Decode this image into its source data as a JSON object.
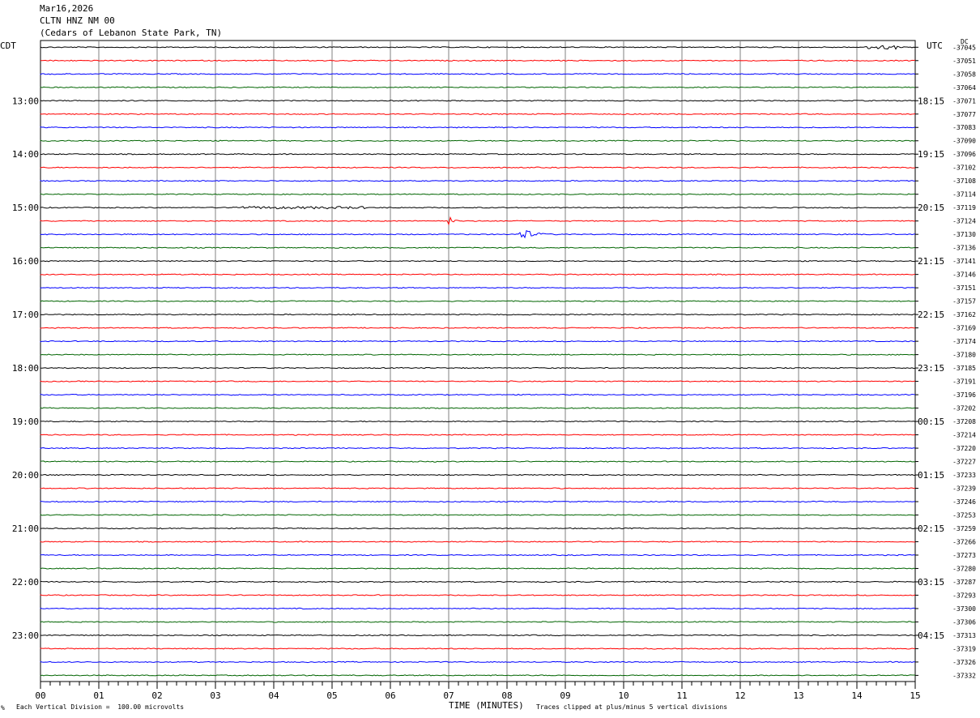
{
  "header": {
    "date": "Mar16,2026",
    "station": "CLTN HNZ NM 00",
    "location": "(Cedars of Lebanon State Park, TN)"
  },
  "left_zone": "CDT",
  "right_zone": "UTC",
  "dc_label": "DC",
  "footer": {
    "scale_note": "Each Vertical Division =  100.00 microvolts",
    "xlabel": "TIME (MINUTES)",
    "clip_note": "Traces clipped at plus/minus 5 vertical divisions",
    "corner_mark": "%"
  },
  "colors": {
    "cycle": [
      "#000000",
      "#ff0000",
      "#0000ff",
      "#006400"
    ],
    "grid": "#808080"
  },
  "chart_data": {
    "type": "line",
    "title": "",
    "xlabel": "TIME (MINUTES)",
    "xlim": [
      0,
      15
    ],
    "x_ticks": [
      "00",
      "01",
      "02",
      "03",
      "04",
      "05",
      "06",
      "07",
      "08",
      "09",
      "10",
      "11",
      "12",
      "13",
      "14",
      "15"
    ],
    "minutes_per_trace": 15,
    "trace_count": 48,
    "hour_labels_left": [
      "13:00",
      "14:00",
      "15:00",
      "16:00",
      "17:00",
      "18:00",
      "19:00",
      "20:00",
      "21:00",
      "22:00",
      "23:00"
    ],
    "hour_labels_right": [
      "18:15",
      "19:15",
      "20:15",
      "21:15",
      "22:15",
      "23:15",
      "00:15",
      "01:15",
      "02:15",
      "03:15",
      "04:15"
    ],
    "dc_offsets": [
      "-37045",
      "-37051",
      "-37058",
      "-37064",
      "-37071",
      "-37077",
      "-37083",
      "-37090",
      "-37096",
      "-37102",
      "-37108",
      "-37114",
      "-37119",
      "-37124",
      "-37130",
      "-37136",
      "-37141",
      "-37146",
      "-37151",
      "-37157",
      "-37162",
      "-37169",
      "-37174",
      "-37180",
      "-37185",
      "-37191",
      "-37196",
      "-37202",
      "-37208",
      "-37214",
      "-37220",
      "-37227",
      "-37233",
      "-37239",
      "-37246",
      "-37253",
      "-37259",
      "-37266",
      "-37273",
      "-37280",
      "-37287",
      "-37293",
      "-37300",
      "-37306",
      "-37313",
      "-37319",
      "-37326",
      "-37332"
    ],
    "events": [
      {
        "trace": 0,
        "start_min": 14.15,
        "end_min": 14.7,
        "amplitude_div": 0.5,
        "kind": "noise"
      },
      {
        "trace": 12,
        "start_min": 3.3,
        "end_min": 5.6,
        "amplitude_div": 0.3,
        "kind": "noise"
      },
      {
        "trace": 13,
        "start_min": 7.0,
        "end_min": 7.25,
        "amplitude_div": 1.4,
        "kind": "quake"
      },
      {
        "trace": 14,
        "start_min": 8.2,
        "end_min": 8.9,
        "amplitude_div": 2.0,
        "kind": "quake"
      }
    ]
  }
}
